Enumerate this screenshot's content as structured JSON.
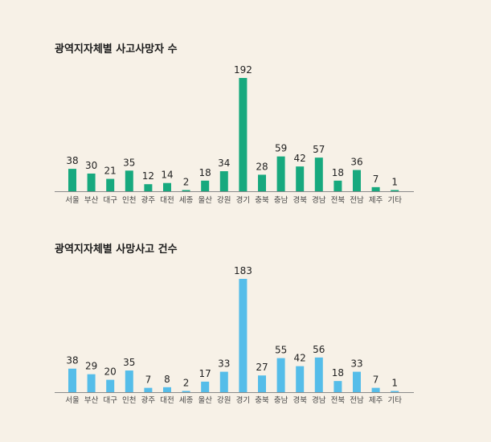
{
  "chart_data": [
    {
      "type": "bar",
      "title": "광역지자체별 사고사망자 수",
      "categories": [
        "서울",
        "부산",
        "대구",
        "인천",
        "광주",
        "대전",
        "세종",
        "울산",
        "강원",
        "경기",
        "충북",
        "충남",
        "경북",
        "경남",
        "전북",
        "전남",
        "제주",
        "기타"
      ],
      "values": [
        38,
        30,
        21,
        35,
        12,
        14,
        2,
        18,
        34,
        192,
        28,
        59,
        42,
        57,
        18,
        36,
        7,
        1
      ],
      "ylim": [
        0,
        192
      ],
      "grid": false,
      "color": "#17a97e"
    },
    {
      "type": "bar",
      "title": "광역지자체별 사망사고 건수",
      "categories": [
        "서울",
        "부산",
        "대구",
        "인천",
        "광주",
        "대전",
        "세종",
        "울산",
        "강원",
        "경기",
        "충북",
        "충남",
        "경북",
        "경남",
        "전북",
        "전남",
        "제주",
        "기타"
      ],
      "values": [
        38,
        29,
        20,
        35,
        7,
        8,
        2,
        17,
        33,
        183,
        27,
        55,
        42,
        56,
        18,
        33,
        7,
        1
      ],
      "ylim": [
        0,
        183
      ],
      "grid": false,
      "color": "#55bde9"
    }
  ]
}
